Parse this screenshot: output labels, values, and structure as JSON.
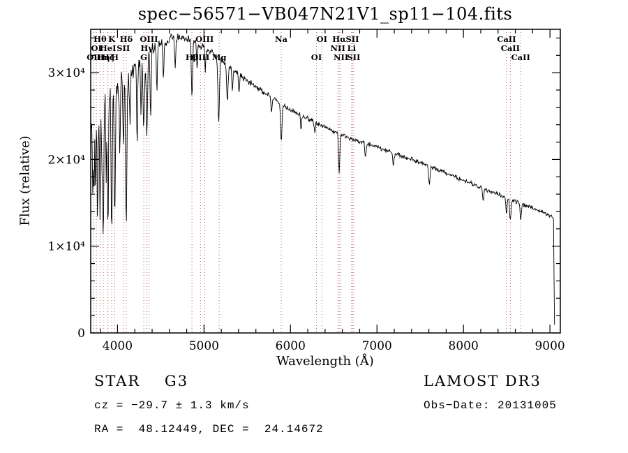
{
  "chart_data": {
    "type": "line",
    "title": "spec−56571−VB047N21V1_sp11−104.fits",
    "xlabel": "Wavelength (Å)",
    "ylabel": "Flux (relative)",
    "xlim": [
      3690,
      9120
    ],
    "ylim": [
      0,
      35000
    ],
    "x_ticks": [
      {
        "value": 4000,
        "label": "4000"
      },
      {
        "value": 5000,
        "label": "5000"
      },
      {
        "value": 6000,
        "label": "6000"
      },
      {
        "value": 7000,
        "label": "7000"
      },
      {
        "value": 8000,
        "label": "8000"
      },
      {
        "value": 9000,
        "label": "9000"
      }
    ],
    "x_minor_step": 200,
    "y_ticks": [
      {
        "value": 0,
        "label": "0"
      },
      {
        "value": 10000,
        "label": "1×10⁴"
      },
      {
        "value": 20000,
        "label": "2×10⁴"
      },
      {
        "value": 30000,
        "label": "3×10⁴"
      }
    ],
    "y_minor_step": 2000,
    "series_color": "#000000",
    "marker_color": "#b05050",
    "line_markers": [
      {
        "wavelength": 3798,
        "label": "Hθ",
        "row": 1
      },
      {
        "wavelength": 3933,
        "label": "K",
        "row": 1
      },
      {
        "wavelength": 4101,
        "label": "Hδ",
        "row": 1
      },
      {
        "wavelength": 4363,
        "label": "OIII",
        "row": 1
      },
      {
        "wavelength": 5007,
        "label": "OIII",
        "row": 1
      },
      {
        "wavelength": 5893,
        "label": "Na",
        "row": 1
      },
      {
        "wavelength": 6363,
        "label": "OI",
        "row": 1
      },
      {
        "wavelength": 6563,
        "label": "Hα",
        "row": 1
      },
      {
        "wavelength": 6716,
        "label": "SII",
        "row": 1
      },
      {
        "wavelength": 8498,
        "label": "CaII",
        "row": 1
      },
      {
        "wavelength": 3756,
        "label": "OI",
        "row": 2
      },
      {
        "wavelength": 3889,
        "label": "HeI",
        "row": 2
      },
      {
        "wavelength": 4068,
        "label": "SII",
        "row": 2
      },
      {
        "wavelength": 4340,
        "label": "Hγ",
        "row": 2
      },
      {
        "wavelength": 6548,
        "label": "NII",
        "row": 2
      },
      {
        "wavelength": 6707,
        "label": "Li",
        "row": 2
      },
      {
        "wavelength": 8542,
        "label": "CaII",
        "row": 2
      },
      {
        "wavelength": 3727,
        "label": "OII",
        "row": 3
      },
      {
        "wavelength": 3835,
        "label": "Hη",
        "row": 3
      },
      {
        "wavelength": 3889,
        "label": "Hζ",
        "row": 3
      },
      {
        "wavelength": 3968,
        "label": "H",
        "row": 3
      },
      {
        "wavelength": 4304,
        "label": "G",
        "row": 3
      },
      {
        "wavelength": 4861,
        "label": "Hβ",
        "row": 3
      },
      {
        "wavelength": 4959,
        "label": "OIII",
        "row": 3
      },
      {
        "wavelength": 5175,
        "label": "Mg",
        "row": 3
      },
      {
        "wavelength": 6300,
        "label": "OI",
        "row": 3
      },
      {
        "wavelength": 6583,
        "label": "NII",
        "row": 3
      },
      {
        "wavelength": 6731,
        "label": "SII",
        "row": 3
      },
      {
        "wavelength": 8662,
        "label": "CaII",
        "row": 3
      }
    ],
    "spectrum": {
      "start": 3695,
      "end": 9055,
      "step": 6,
      "continuum": [
        [
          3695,
          25600
        ],
        [
          3750,
          26200
        ],
        [
          3800,
          26800
        ],
        [
          3850,
          27100
        ],
        [
          3900,
          27500
        ],
        [
          3950,
          28000
        ],
        [
          4000,
          28600
        ],
        [
          4100,
          29600
        ],
        [
          4200,
          30700
        ],
        [
          4300,
          31800
        ],
        [
          4400,
          32700
        ],
        [
          4500,
          33400
        ],
        [
          4600,
          33900
        ],
        [
          4700,
          34100
        ],
        [
          4800,
          33900
        ],
        [
          4900,
          33500
        ],
        [
          5000,
          32900
        ],
        [
          5100,
          32300
        ],
        [
          5200,
          31500
        ],
        [
          5300,
          30600
        ],
        [
          5400,
          29800
        ],
        [
          5500,
          29100
        ],
        [
          5600,
          28400
        ],
        [
          5700,
          27700
        ],
        [
          5800,
          27000
        ],
        [
          5900,
          26300
        ],
        [
          6000,
          25700
        ],
        [
          6100,
          25200
        ],
        [
          6200,
          24700
        ],
        [
          6300,
          24200
        ],
        [
          6400,
          23700
        ],
        [
          6500,
          23200
        ],
        [
          6600,
          22800
        ],
        [
          6700,
          22400
        ],
        [
          6800,
          22100
        ],
        [
          6900,
          21800
        ],
        [
          7000,
          21400
        ],
        [
          7200,
          20700
        ],
        [
          7400,
          20000
        ],
        [
          7600,
          19200
        ],
        [
          7800,
          18400
        ],
        [
          8000,
          17600
        ],
        [
          8200,
          16800
        ],
        [
          8400,
          16000
        ],
        [
          8600,
          15200
        ],
        [
          8800,
          14400
        ],
        [
          8950,
          13700
        ],
        [
          9030,
          13400
        ],
        [
          9042,
          13200
        ],
        [
          9050,
          2500
        ],
        [
          9055,
          200
        ]
      ],
      "absorption_lines": [
        {
          "center": 3712,
          "depth": 11000,
          "sigma": 5
        },
        {
          "center": 3727,
          "depth": 9500,
          "sigma": 5
        },
        {
          "center": 3745,
          "depth": 12000,
          "sigma": 5
        },
        {
          "center": 3770,
          "depth": 13500,
          "sigma": 6
        },
        {
          "center": 3798,
          "depth": 13500,
          "sigma": 6
        },
        {
          "center": 3820,
          "depth": 8000,
          "sigma": 4
        },
        {
          "center": 3835,
          "depth": 16500,
          "sigma": 6
        },
        {
          "center": 3869,
          "depth": 9500,
          "sigma": 5
        },
        {
          "center": 3889,
          "depth": 15000,
          "sigma": 6
        },
        {
          "center": 3933,
          "depth": 17000,
          "sigma": 7
        },
        {
          "center": 3968,
          "depth": 15000,
          "sigma": 7
        },
        {
          "center": 4026,
          "depth": 8000,
          "sigma": 6
        },
        {
          "center": 4068,
          "depth": 7500,
          "sigma": 6
        },
        {
          "center": 4101,
          "depth": 17500,
          "sigma": 7
        },
        {
          "center": 4144,
          "depth": 6500,
          "sigma": 6
        },
        {
          "center": 4227,
          "depth": 9000,
          "sigma": 6
        },
        {
          "center": 4271,
          "depth": 6000,
          "sigma": 5
        },
        {
          "center": 4304,
          "depth": 8000,
          "sigma": 9
        },
        {
          "center": 4340,
          "depth": 9500,
          "sigma": 7
        },
        {
          "center": 4383,
          "depth": 7500,
          "sigma": 6
        },
        {
          "center": 4455,
          "depth": 5000,
          "sigma": 6
        },
        {
          "center": 4531,
          "depth": 4500,
          "sigma": 6
        },
        {
          "center": 4668,
          "depth": 3800,
          "sigma": 6
        },
        {
          "center": 4861,
          "depth": 6800,
          "sigma": 7
        },
        {
          "center": 4920,
          "depth": 3000,
          "sigma": 5
        },
        {
          "center": 5015,
          "depth": 2800,
          "sigma": 5
        },
        {
          "center": 5170,
          "depth": 7200,
          "sigma": 9
        },
        {
          "center": 5270,
          "depth": 4200,
          "sigma": 8
        },
        {
          "center": 5328,
          "depth": 2600,
          "sigma": 6
        },
        {
          "center": 5405,
          "depth": 2000,
          "sigma": 6
        },
        {
          "center": 5780,
          "depth": 1800,
          "sigma": 6
        },
        {
          "center": 5893,
          "depth": 4300,
          "sigma": 8
        },
        {
          "center": 6122,
          "depth": 1600,
          "sigma": 6
        },
        {
          "center": 6280,
          "depth": 1400,
          "sigma": 6
        },
        {
          "center": 6563,
          "depth": 4400,
          "sigma": 7
        },
        {
          "center": 6867,
          "depth": 1800,
          "sigma": 7
        },
        {
          "center": 7190,
          "depth": 1400,
          "sigma": 8
        },
        {
          "center": 7605,
          "depth": 2000,
          "sigma": 8
        },
        {
          "center": 8229,
          "depth": 1400,
          "sigma": 7
        },
        {
          "center": 8498,
          "depth": 1900,
          "sigma": 7
        },
        {
          "center": 8542,
          "depth": 2300,
          "sigma": 8
        },
        {
          "center": 8662,
          "depth": 2000,
          "sigma": 7
        }
      ],
      "noise_profile": [
        [
          3695,
          2700
        ],
        [
          3800,
          2500
        ],
        [
          3900,
          2100
        ],
        [
          4000,
          1700
        ],
        [
          4150,
          1300
        ],
        [
          4300,
          950
        ],
        [
          4500,
          700
        ],
        [
          4800,
          520
        ],
        [
          5200,
          430
        ],
        [
          5800,
          380
        ],
        [
          6500,
          340
        ],
        [
          7500,
          310
        ],
        [
          8500,
          300
        ],
        [
          9055,
          280
        ]
      ]
    }
  },
  "footer": {
    "classification": "STAR    G3",
    "survey": "LAMOST DR3",
    "cz": "cz = −29.7 ± 1.3 km/s",
    "obs_date": "Obs−Date: 20131005",
    "coords": "RA =  48.12449, DEC =  24.14672"
  }
}
